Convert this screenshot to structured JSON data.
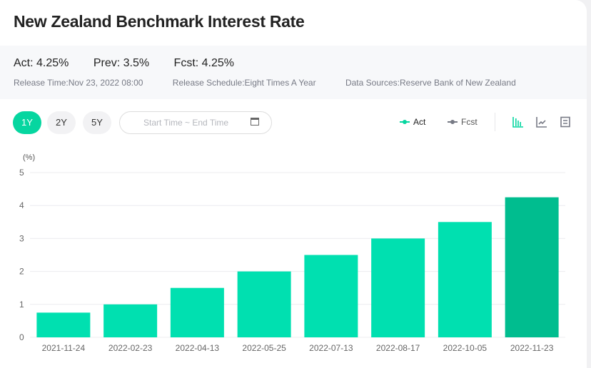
{
  "header": {
    "title": "New Zealand Benchmark Interest Rate"
  },
  "summary": {
    "act": "Act: 4.25%",
    "prev": "Prev: 3.5%",
    "fcst": "Fcst: 4.25%",
    "release_time": "Release Time:Nov 23, 2022 08:00",
    "release_schedule": "Release Schedule:Eight Times A Year",
    "data_sources": "Data Sources:Reserve Bank of New Zealand"
  },
  "controls": {
    "ranges": [
      "1Y",
      "2Y",
      "5Y"
    ],
    "active_range": "1Y",
    "date_placeholder": "Start Time ~ End Time",
    "legend": {
      "act": "Act",
      "fcst": "Fcst"
    },
    "view_icons": [
      "bar-chart-icon",
      "line-chart-icon",
      "table-icon"
    ],
    "active_view": "bar-chart-icon"
  },
  "colors": {
    "accent": "#06d6a0",
    "bar": "#00e0b0",
    "bar_latest": "#00bd8f",
    "fcst": "#777a85"
  },
  "chart_data": {
    "type": "bar",
    "ylabel": "(%)",
    "ylim": [
      0,
      5
    ],
    "yticks": [
      "0",
      "1",
      "2",
      "3",
      "4",
      "5"
    ],
    "grid": true,
    "categories": [
      "2021-11-24",
      "2022-02-23",
      "2022-04-13",
      "2022-05-25",
      "2022-07-13",
      "2022-08-17",
      "2022-10-05",
      "2022-11-23"
    ],
    "series": [
      {
        "name": "Act",
        "values": [
          0.75,
          1,
          1.5,
          2,
          2.5,
          3,
          3.5,
          4.25
        ]
      }
    ]
  }
}
